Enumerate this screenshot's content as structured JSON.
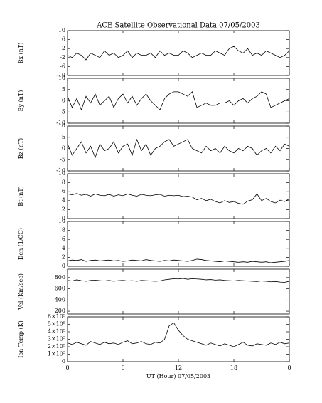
{
  "chart_data": [
    {
      "type": "line",
      "title": "ACE Satellite Observational Data   07/05/2003",
      "ylabel": "Bx (nT)",
      "x": [
        0,
        0.5,
        1,
        1.5,
        2,
        2.5,
        3,
        3.5,
        4,
        4.5,
        5,
        5.5,
        6,
        6.5,
        7,
        7.5,
        8,
        8.5,
        9,
        9.5,
        10,
        10.5,
        11,
        11.5,
        12,
        12.5,
        13,
        13.5,
        14,
        14.5,
        15,
        15.5,
        16,
        16.5,
        17,
        17.5,
        18,
        18.5,
        19,
        19.5,
        20,
        20.5,
        21,
        21.5,
        22,
        22.5,
        23,
        23.5,
        24
      ],
      "series": [
        {
          "color": "#000000",
          "values": [
            -1,
            -2,
            0,
            -1,
            -3,
            0,
            -1,
            -2,
            1,
            -1,
            0,
            -2,
            -1,
            1,
            -2,
            0,
            -1,
            -1,
            0,
            -2,
            1,
            -1,
            0,
            -1,
            -1,
            1,
            0,
            -2,
            -1,
            0,
            -1,
            -1,
            1,
            0,
            -1,
            2,
            3,
            1,
            0,
            2,
            -1,
            0,
            -1,
            1,
            0,
            -1,
            -2,
            -1,
            1
          ]
        }
      ],
      "xlim": [
        0,
        24
      ],
      "xticks": [
        0,
        6,
        12,
        18,
        {
          "value": 24,
          "label": "0"
        }
      ],
      "ylim": [
        -10,
        10
      ],
      "yticks": [
        -10,
        -6,
        -2,
        2,
        6,
        10
      ],
      "grid": false
    },
    {
      "type": "line",
      "ylabel": "By (nT)",
      "x": [
        0,
        0.5,
        1,
        1.5,
        2,
        2.5,
        3,
        3.5,
        4,
        4.5,
        5,
        5.5,
        6,
        6.5,
        7,
        7.5,
        8,
        8.5,
        9,
        9.5,
        10,
        10.5,
        11,
        11.5,
        12,
        12.5,
        13,
        13.5,
        14,
        14.5,
        15,
        15.5,
        16,
        16.5,
        17,
        17.5,
        18,
        18.5,
        19,
        19.5,
        20,
        20.5,
        21,
        21.5,
        22,
        22.5,
        23,
        23.5,
        24
      ],
      "series": [
        {
          "color": "#000000",
          "values": [
            2,
            -3,
            1,
            -4,
            2,
            -1,
            3,
            -2,
            0,
            2,
            -3,
            1,
            3,
            -1,
            2,
            -2,
            1,
            3,
            0,
            -2,
            -4,
            1,
            3,
            4,
            4,
            3,
            2,
            4,
            -3,
            -2,
            -1,
            -2,
            -2,
            -1,
            -1,
            0,
            -2,
            0,
            1,
            -1,
            1,
            2,
            4,
            3,
            -3,
            -2,
            -1,
            0,
            1
          ]
        }
      ],
      "xlim": [
        0,
        24
      ],
      "xticks": [
        0,
        6,
        12,
        18,
        {
          "value": 24,
          "label": "0"
        }
      ],
      "ylim": [
        -10,
        10
      ],
      "yticks": [
        -10,
        -5,
        0,
        5,
        10
      ],
      "grid": false
    },
    {
      "type": "line",
      "ylabel": "Bz (nT)",
      "x": [
        0,
        0.5,
        1,
        1.5,
        2,
        2.5,
        3,
        3.5,
        4,
        4.5,
        5,
        5.5,
        6,
        6.5,
        7,
        7.5,
        8,
        8.5,
        9,
        9.5,
        10,
        10.5,
        11,
        11.5,
        12,
        12.5,
        13,
        13.5,
        14,
        14.5,
        15,
        15.5,
        16,
        16.5,
        17,
        17.5,
        18,
        18.5,
        19,
        19.5,
        20,
        20.5,
        21,
        21.5,
        22,
        22.5,
        23,
        23.5,
        24
      ],
      "series": [
        {
          "color": "#000000",
          "values": [
            2,
            -3,
            0,
            3,
            -2,
            1,
            -4,
            2,
            -1,
            0,
            3,
            -2,
            1,
            2,
            -3,
            4,
            -1,
            2,
            -3,
            0,
            1,
            3,
            4,
            1,
            2,
            3,
            4,
            0,
            -1,
            -2,
            1,
            -1,
            0,
            -2,
            1,
            -1,
            -2,
            0,
            -1,
            1,
            0,
            -3,
            -1,
            0,
            -2,
            1,
            -1,
            2,
            1
          ]
        }
      ],
      "xlim": [
        0,
        24
      ],
      "xticks": [
        0,
        6,
        12,
        18,
        {
          "value": 24,
          "label": "0"
        }
      ],
      "ylim": [
        -10,
        10
      ],
      "yticks": [
        -10,
        -5,
        0,
        5,
        10
      ],
      "grid": false
    },
    {
      "type": "line",
      "ylabel": "Bt (nT)",
      "x": [
        0,
        0.5,
        1,
        1.5,
        2,
        2.5,
        3,
        3.5,
        4,
        4.5,
        5,
        5.5,
        6,
        6.5,
        7,
        7.5,
        8,
        8.5,
        9,
        9.5,
        10,
        10.5,
        11,
        11.5,
        12,
        12.5,
        13,
        13.5,
        14,
        14.5,
        15,
        15.5,
        16,
        16.5,
        17,
        17.5,
        18,
        18.5,
        19,
        19.5,
        20,
        20.5,
        21,
        21.5,
        22,
        22.5,
        23,
        23.5,
        24
      ],
      "series": [
        {
          "color": "#000000",
          "values": [
            5.5,
            5.3,
            5.6,
            5.2,
            5.4,
            5,
            5.5,
            5.2,
            5.1,
            5.4,
            5,
            5.3,
            5.1,
            5.5,
            5.2,
            5,
            5.4,
            5.2,
            5.1,
            5.3,
            5.4,
            5,
            5.2,
            5.1,
            5.2,
            4.9,
            5,
            4.8,
            4.2,
            4.5,
            4,
            4.3,
            3.8,
            3.5,
            4,
            3.6,
            3.8,
            3.4,
            3.2,
            3.9,
            4.2,
            5.5,
            4,
            4.5,
            3.8,
            3.5,
            4.1,
            3.8,
            4.4
          ]
        }
      ],
      "xlim": [
        0,
        24
      ],
      "xticks": [
        0,
        6,
        12,
        18,
        {
          "value": 24,
          "label": "0"
        }
      ],
      "ylim": [
        0,
        10
      ],
      "yticks": [
        0,
        2,
        4,
        6,
        8,
        10
      ],
      "grid": false
    },
    {
      "type": "line",
      "ylabel": "Den (1/CC)",
      "x": [
        0,
        0.5,
        1,
        1.5,
        2,
        2.5,
        3,
        3.5,
        4,
        4.5,
        5,
        5.5,
        6,
        6.5,
        7,
        7.5,
        8,
        8.5,
        9,
        9.5,
        10,
        10.5,
        11,
        11.5,
        12,
        12.5,
        13,
        13.5,
        14,
        14.5,
        15,
        15.5,
        16,
        16.5,
        17,
        17.5,
        18,
        18.5,
        19,
        19.5,
        20,
        20.5,
        21,
        21.5,
        22,
        22.5,
        23,
        23.5,
        24
      ],
      "series": [
        {
          "color": "#000000",
          "values": [
            1.2,
            1.4,
            1.3,
            1.5,
            1.1,
            1.3,
            1.4,
            1.2,
            1.3,
            1.4,
            1.2,
            1.3,
            1.1,
            1.2,
            1.4,
            1.3,
            1.2,
            1.5,
            1.3,
            1.2,
            1.1,
            1.3,
            1.2,
            1.4,
            1.3,
            1.2,
            1.1,
            1.3,
            1.6,
            1.5,
            1.3,
            1.2,
            1.1,
            1,
            1.2,
            1.1,
            1,
            0.9,
            1,
            0.9,
            1.1,
            1,
            0.9,
            1,
            0.8,
            0.9,
            1,
            1.1,
            1.3
          ]
        }
      ],
      "xlim": [
        0,
        24
      ],
      "xticks": [
        0,
        6,
        12,
        18,
        {
          "value": 24,
          "label": "0"
        }
      ],
      "ylim": [
        0,
        10
      ],
      "yticks": [
        0,
        2,
        4,
        6,
        8,
        10
      ],
      "grid": false
    },
    {
      "type": "line",
      "ylabel": "Vel (Km/sec)",
      "x": [
        0,
        0.5,
        1,
        1.5,
        2,
        2.5,
        3,
        3.5,
        4,
        4.5,
        5,
        5.5,
        6,
        6.5,
        7,
        7.5,
        8,
        8.5,
        9,
        9.5,
        10,
        10.5,
        11,
        11.5,
        12,
        12.5,
        13,
        13.5,
        14,
        14.5,
        15,
        15.5,
        16,
        16.5,
        17,
        17.5,
        18,
        18.5,
        19,
        19.5,
        20,
        20.5,
        21,
        21.5,
        22,
        22.5,
        23,
        23.5,
        24
      ],
      "series": [
        {
          "color": "#000000",
          "values": [
            750,
            740,
            760,
            745,
            735,
            750,
            755,
            745,
            740,
            750,
            735,
            745,
            750,
            740,
            745,
            735,
            750,
            745,
            740,
            735,
            740,
            760,
            770,
            780,
            775,
            785,
            770,
            780,
            775,
            770,
            760,
            765,
            755,
            760,
            750,
            745,
            740,
            750,
            745,
            740,
            735,
            730,
            740,
            735,
            725,
            730,
            720,
            715,
            735
          ]
        }
      ],
      "xlim": [
        0,
        24
      ],
      "xticks": [
        0,
        6,
        12,
        18,
        {
          "value": 24,
          "label": "0"
        }
      ],
      "ylim": [
        150,
        950
      ],
      "yticks": [
        200,
        400,
        600,
        800
      ],
      "grid": false
    },
    {
      "type": "line",
      "ylabel": "Ion Temp (K)",
      "xlabel": "UT (Hour)   07/05/2003",
      "x": [
        0,
        0.5,
        1,
        1.5,
        2,
        2.5,
        3,
        3.5,
        4,
        4.5,
        5,
        5.5,
        6,
        6.5,
        7,
        7.5,
        8,
        8.5,
        9,
        9.5,
        10,
        10.5,
        11,
        11.5,
        12,
        12.5,
        13,
        13.5,
        14,
        14.5,
        15,
        15.5,
        16,
        16.5,
        17,
        17.5,
        18,
        18.5,
        19,
        19.5,
        20,
        20.5,
        21,
        21.5,
        22,
        22.5,
        23,
        23.5,
        24
      ],
      "series": [
        {
          "color": "#000000",
          "values": [
            250000,
            230000,
            260000,
            240000,
            220000,
            270000,
            250000,
            230000,
            260000,
            240000,
            250000,
            230000,
            260000,
            280000,
            240000,
            250000,
            270000,
            240000,
            230000,
            260000,
            250000,
            300000,
            480000,
            520000,
            420000,
            350000,
            300000,
            280000,
            260000,
            240000,
            220000,
            250000,
            230000,
            210000,
            240000,
            220000,
            200000,
            230000,
            260000,
            220000,
            210000,
            240000,
            230000,
            220000,
            250000,
            230000,
            260000,
            240000,
            250000
          ]
        }
      ],
      "xlim": [
        0,
        24
      ],
      "xticks": [
        0,
        6,
        12,
        18,
        {
          "value": 24,
          "label": "0"
        }
      ],
      "ylim": [
        0,
        600000
      ],
      "yticks": [
        0,
        {
          "value": 100000,
          "label": "1×10⁵"
        },
        {
          "value": 200000,
          "label": "2×10⁵"
        },
        {
          "value": 300000,
          "label": "3×10⁵"
        },
        {
          "value": 400000,
          "label": "4×10⁵"
        },
        {
          "value": 500000,
          "label": "5×10⁵"
        },
        {
          "value": 600000,
          "label": "6×10⁵"
        }
      ],
      "grid": false
    }
  ]
}
